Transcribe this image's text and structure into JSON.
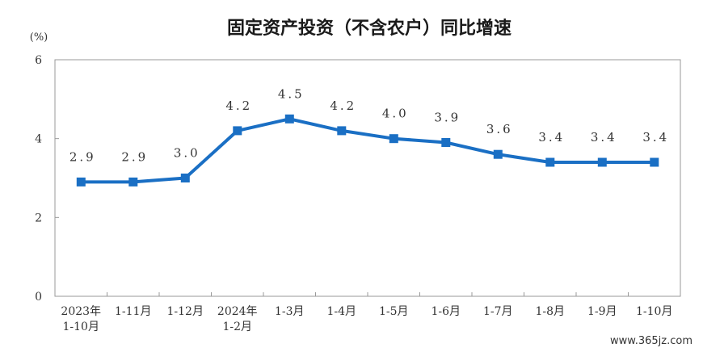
{
  "chart_data": {
    "type": "line",
    "title": "固定资产投资（不含农户）同比增速",
    "ylabel": "(%)",
    "xlabel": "",
    "ylim": [
      0,
      6
    ],
    "yticks": [
      0,
      2,
      4,
      6
    ],
    "grid": false,
    "legend": "none",
    "categories": [
      [
        "2023年",
        "1-10月"
      ],
      [
        "1-11月"
      ],
      [
        "1-12月"
      ],
      [
        "2024年",
        "1-2月"
      ],
      [
        "1-3月"
      ],
      [
        "1-4月"
      ],
      [
        "1-5月"
      ],
      [
        "1-6月"
      ],
      [
        "1-7月"
      ],
      [
        "1-8月"
      ],
      [
        "1-9月"
      ],
      [
        "1-10月"
      ]
    ],
    "series": [
      {
        "values": [
          2.9,
          2.9,
          3.0,
          4.2,
          4.5,
          4.2,
          4.0,
          3.9,
          3.6,
          3.4,
          3.4,
          3.4
        ],
        "labels": [
          "2.9",
          "2.9",
          "3.0",
          "4.2",
          "4.5",
          "4.2",
          "4.0",
          "3.9",
          "3.6",
          "3.4",
          "3.4",
          "3.4"
        ],
        "color": "#1a6fc4"
      }
    ]
  },
  "colors": {
    "axis": "#999999",
    "line": "#1a6fc4"
  },
  "watermark": "www.365jz.com"
}
